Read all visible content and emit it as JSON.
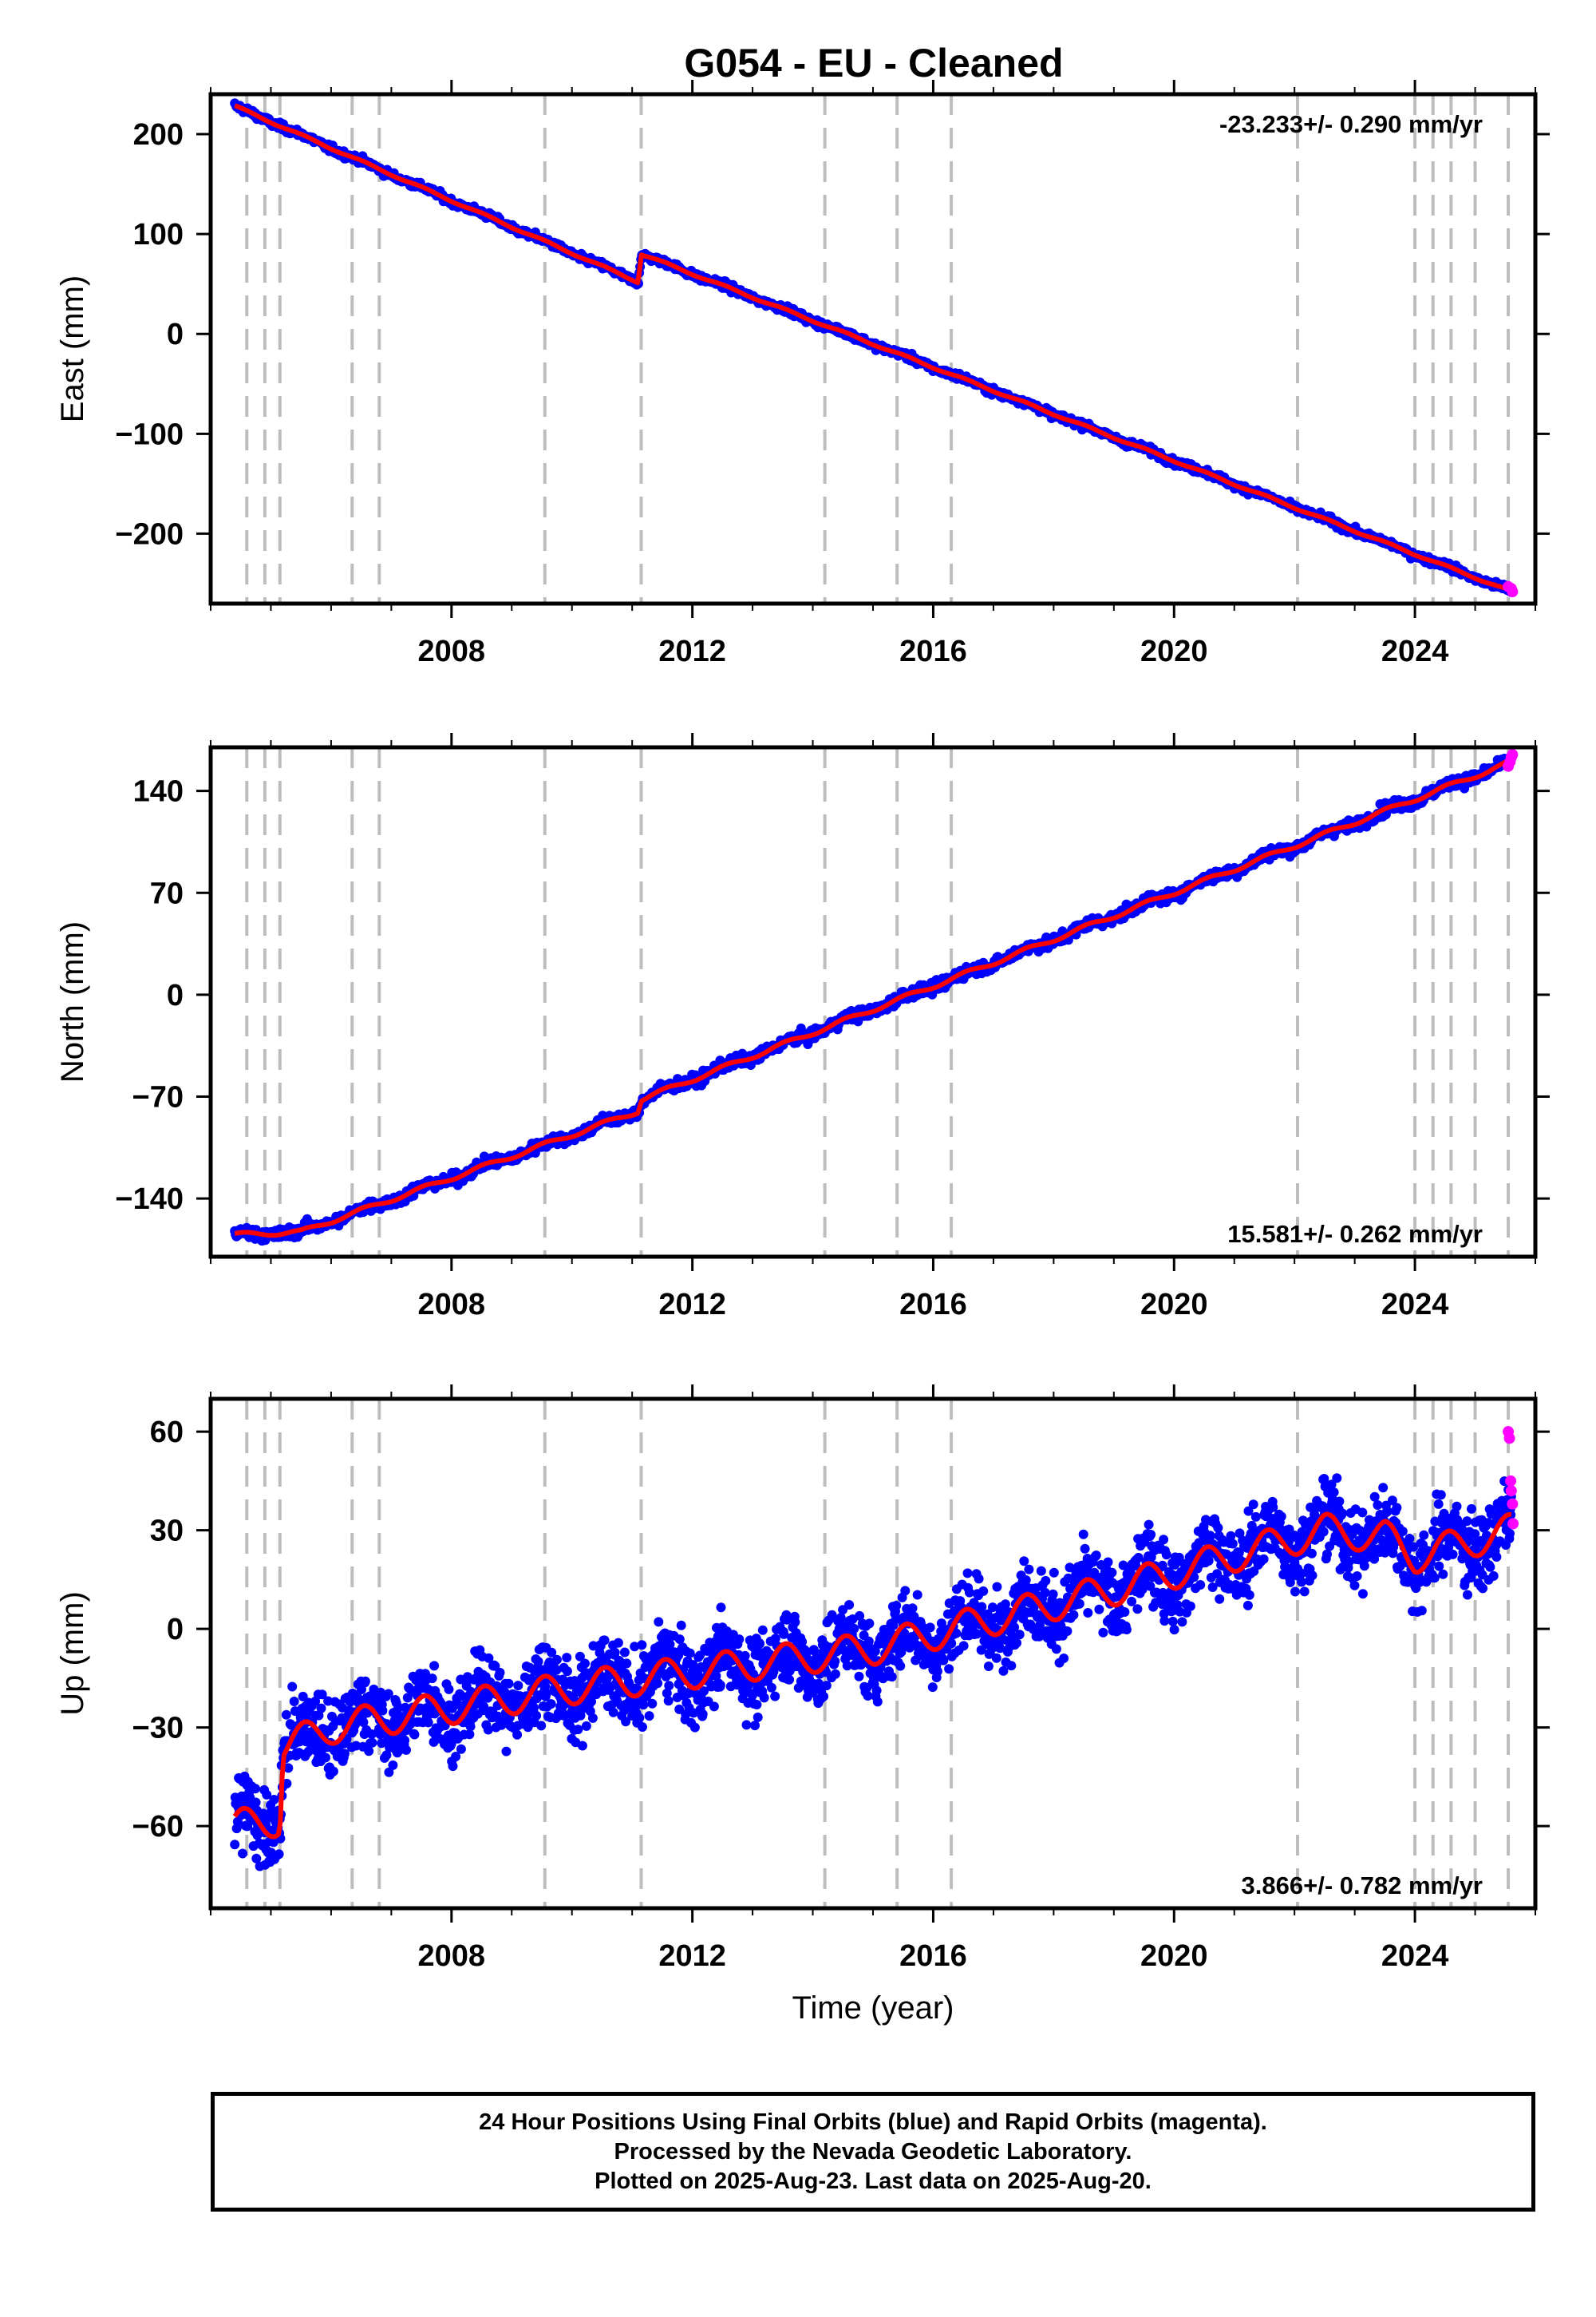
{
  "title": "G054  - EU - Cleaned",
  "colors": {
    "final_points": "#0000ff",
    "rapid_points": "#ff00ff",
    "model_line": "#ff0000",
    "event_lines": "#bdbdbd",
    "axes": "#000000"
  },
  "event_lines_years": [
    2004.6,
    2004.9,
    2005.15,
    2006.35,
    2006.8,
    2009.55,
    2011.15,
    2014.2,
    2015.4,
    2016.3,
    2022.05,
    2024.0,
    2024.3,
    2024.6,
    2025.0,
    2025.55
  ],
  "footer": {
    "line1": "24 Hour Positions Using Final Orbits (blue) and Rapid Orbits (magenta).",
    "line2": "Processed by the Nevada Geodetic Laboratory.",
    "line3": "Plotted on 2025-Aug-23. Last data on 2025-Aug-20."
  },
  "chart_data": [
    {
      "type": "scatter",
      "ylabel": "East (mm)",
      "xlabel": "",
      "xlim": [
        2004.0,
        2026.0
      ],
      "ylim": [
        -270,
        240
      ],
      "xticks": [
        2008,
        2012,
        2016,
        2020,
        2024
      ],
      "yticks": [
        -200,
        -100,
        0,
        100,
        200
      ],
      "rate_label": "-23.233+/- 0.290 mm/yr",
      "rate_position": "top-right",
      "trend": {
        "x": [
          2004.4,
          2011.1,
          2011.15,
          2025.6
        ],
        "y": [
          228,
          52,
          80,
          -258
        ]
      },
      "noise": 2.5,
      "steps": [],
      "seasonal": 1.0,
      "n_final": 1500,
      "rapid": {
        "x": [
          2025.55,
          2025.6,
          2025.62
        ],
        "y": [
          -253,
          -255,
          -258
        ]
      }
    },
    {
      "type": "scatter",
      "ylabel": "North (mm)",
      "xlabel": "",
      "xlim": [
        2004.0,
        2026.0
      ],
      "ylim": [
        -180,
        170
      ],
      "xticks": [
        2008,
        2012,
        2016,
        2020,
        2024
      ],
      "yticks": [
        -140,
        -70,
        0,
        70,
        140
      ],
      "rate_label": "15.581+/- 0.262 mm/yr",
      "rate_position": "bottom-right",
      "trend": {
        "x": [
          2004.4,
          2005.5,
          2011.1,
          2011.15,
          2025.6
        ],
        "y": [
          -165,
          -163,
          -80,
          -72,
          160
        ]
      },
      "noise": 2.8,
      "steps": [],
      "seasonal": 1.5,
      "n_final": 1500,
      "rapid": {
        "x": [
          2025.55,
          2025.58,
          2025.6,
          2025.62
        ],
        "y": [
          157,
          160,
          163,
          165
        ]
      }
    },
    {
      "type": "scatter",
      "ylabel": "Up (mm)",
      "xlabel": "Time (year)",
      "xlim": [
        2004.0,
        2026.0
      ],
      "ylim": [
        -85,
        70
      ],
      "xticks": [
        2008,
        2012,
        2016,
        2020,
        2024
      ],
      "yticks": [
        -60,
        -30,
        0,
        30,
        60
      ],
      "rate_label": "3.866+/- 0.782 mm/yr",
      "rate_position": "bottom-right",
      "trend": {
        "x": [
          2004.4,
          2005.15,
          2005.2,
          2006.0,
          2010.0,
          2015.0,
          2019.0,
          2022.5,
          2023.5,
          2024.0,
          2025.6
        ],
        "y": [
          -60,
          -58,
          -36,
          -30,
          -18,
          -6,
          12,
          30,
          28,
          22,
          30
        ]
      },
      "noise": 8,
      "steps": [],
      "seasonal": 5,
      "n_final": 2600,
      "rapid": {
        "x": [
          2025.55,
          2025.57,
          2025.59,
          2025.6,
          2025.62,
          2025.63
        ],
        "y": [
          60,
          58,
          45,
          42,
          38,
          32
        ]
      }
    }
  ]
}
